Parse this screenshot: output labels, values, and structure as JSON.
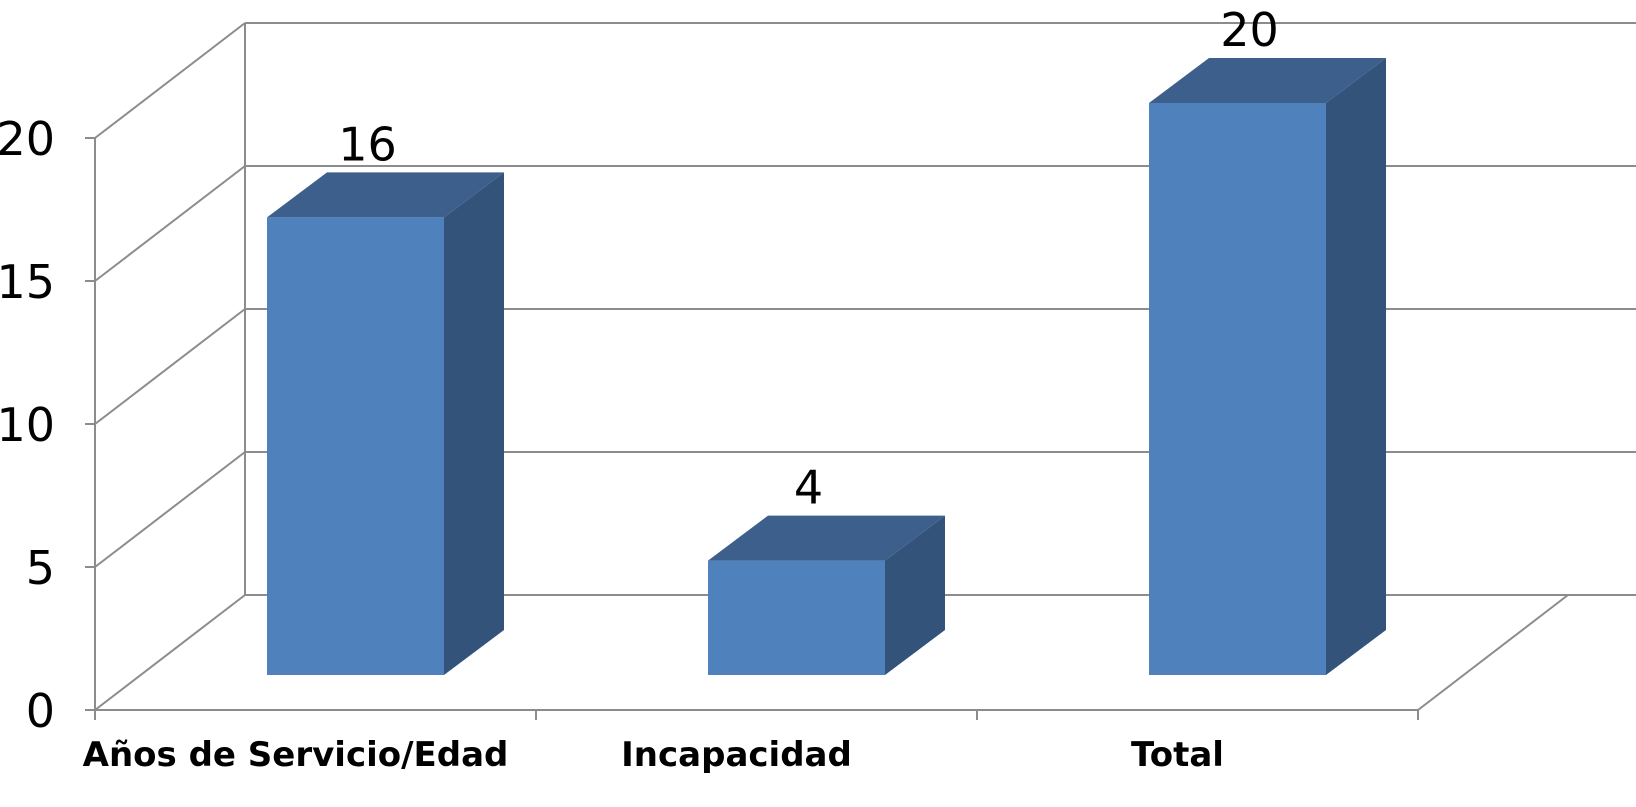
{
  "chart_data": {
    "type": "bar",
    "categories": [
      "Años de Servicio/Edad",
      "Incapacidad",
      "Total"
    ],
    "values": [
      16,
      4,
      20
    ],
    "title": "",
    "xlabel": "",
    "ylabel": "",
    "ylim": [
      0,
      20
    ],
    "yticks": [
      "0",
      "5",
      "10",
      "15",
      "20"
    ],
    "data_labels": [
      "16",
      "4",
      "20"
    ],
    "grid": true,
    "legend": "none",
    "style": "3d-column",
    "colors": {
      "front": "#4f81bd",
      "top": "#3d5f8b",
      "side": "#33537b",
      "grid": "#8c8c8c"
    }
  }
}
